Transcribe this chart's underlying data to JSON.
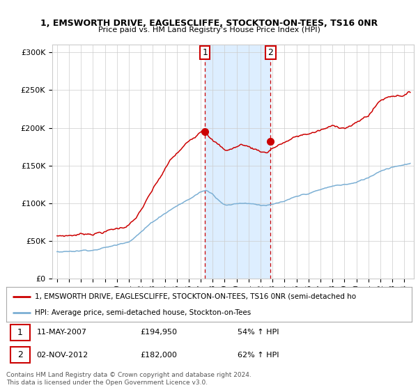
{
  "title1": "1, EMSWORTH DRIVE, EAGLESCLIFFE, STOCKTON-ON-TEES, TS16 0NR",
  "title2": "Price paid vs. HM Land Registry's House Price Index (HPI)",
  "ylabel_ticks": [
    "£0",
    "£50K",
    "£100K",
    "£150K",
    "£200K",
    "£250K",
    "£300K"
  ],
  "ytick_vals": [
    0,
    50000,
    100000,
    150000,
    200000,
    250000,
    300000
  ],
  "ylim": [
    0,
    310000
  ],
  "xlim_start": 1994.6,
  "xlim_end": 2024.8,
  "sale1_x": 2007.36,
  "sale1_y": 194950,
  "sale2_x": 2012.84,
  "sale2_y": 182000,
  "line1_color": "#cc0000",
  "line2_color": "#7bafd4",
  "shade_color": "#ddeeff",
  "vline_color": "#cc0000",
  "grid_color": "#cccccc",
  "legend1_text": "1, EMSWORTH DRIVE, EAGLESCLIFFE, STOCKTON-ON-TEES, TS16 0NR (semi-detached ho",
  "legend2_text": "HPI: Average price, semi-detached house, Stockton-on-Tees",
  "footer1": "Contains HM Land Registry data © Crown copyright and database right 2024.",
  "footer2": "This data is licensed under the Open Government Licence v3.0.",
  "sale1_date": "11-MAY-2007",
  "sale1_price": "£194,950",
  "sale1_hpi": "54% ↑ HPI",
  "sale2_date": "02-NOV-2012",
  "sale2_price": "£182,000",
  "sale2_hpi": "62% ↑ HPI"
}
